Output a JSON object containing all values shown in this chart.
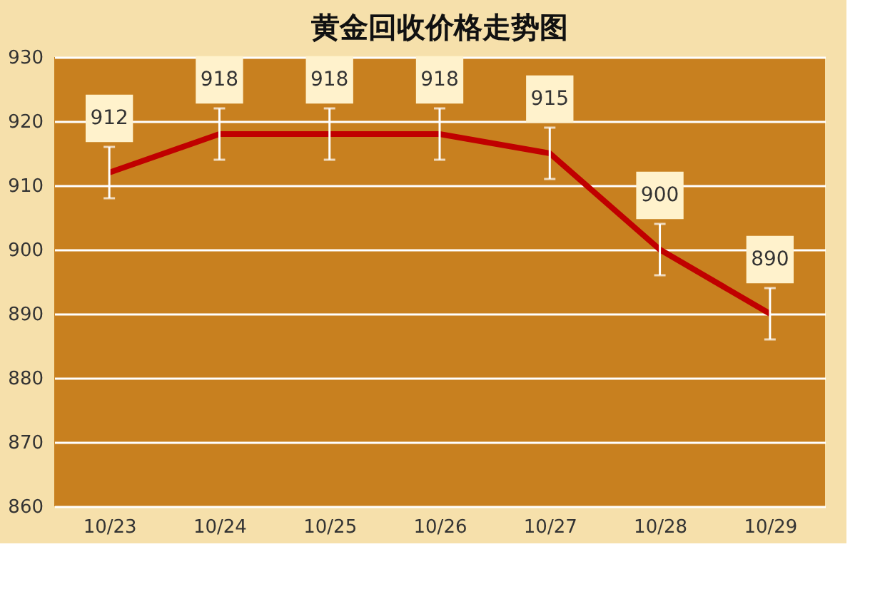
{
  "chart_data": {
    "type": "line",
    "title": "黄金回收价格走势图",
    "categories": [
      "10/23",
      "10/24",
      "10/25",
      "10/26",
      "10/27",
      "10/28",
      "10/29"
    ],
    "series": [
      {
        "color": "#c00000",
        "values": [
          912,
          918,
          918,
          918,
          915,
          900,
          890
        ],
        "errors": [
          4,
          4,
          4,
          4,
          4,
          4,
          4
        ]
      }
    ],
    "ylim": [
      860,
      930
    ],
    "yticks": [
      860,
      870,
      880,
      890,
      900,
      910,
      920,
      930
    ],
    "grid": "y",
    "data_labels": true,
    "marker": "none",
    "line_style": "solid"
  }
}
